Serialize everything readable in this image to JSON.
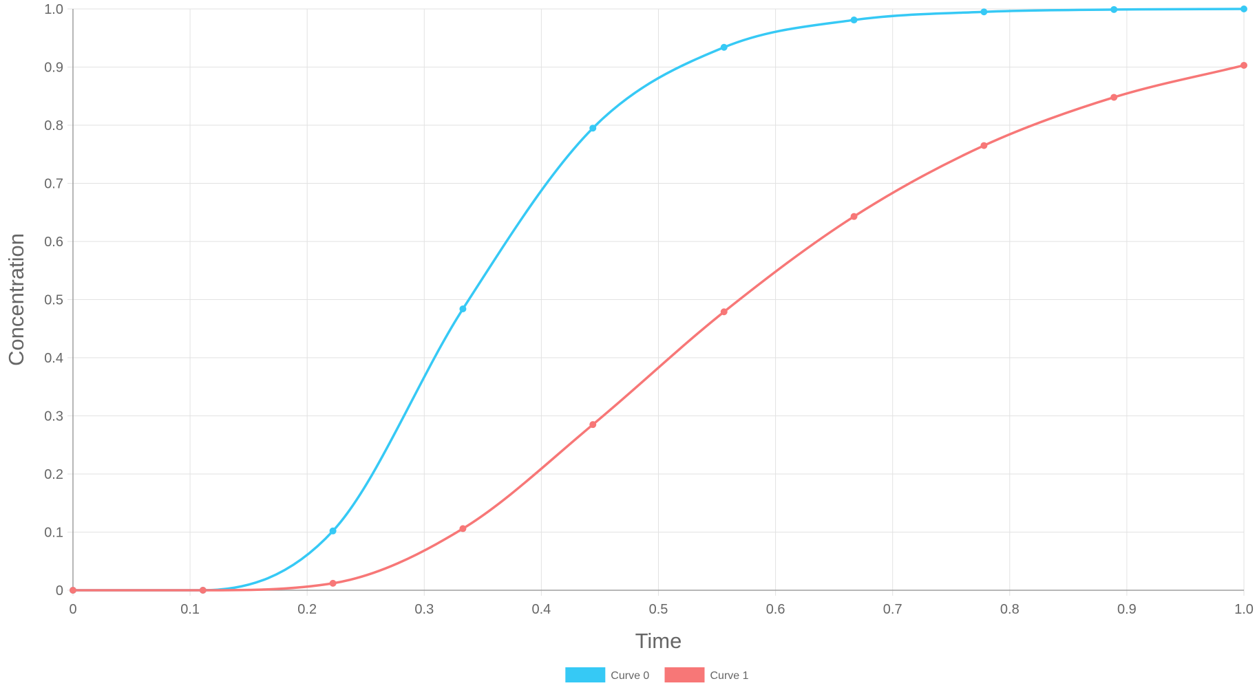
{
  "chart_data": {
    "type": "line",
    "title": "",
    "xlabel": "Time",
    "ylabel": "Concentration",
    "xlim": [
      0,
      1
    ],
    "ylim": [
      0,
      1
    ],
    "x_ticks": [
      "0",
      "0.1",
      "0.2",
      "0.3",
      "0.4",
      "0.5",
      "0.6",
      "0.7",
      "0.8",
      "0.9",
      "1.0"
    ],
    "y_ticks": [
      "0",
      "0.1",
      "0.2",
      "0.3",
      "0.4",
      "0.5",
      "0.6",
      "0.7",
      "0.8",
      "0.9",
      "1.0"
    ],
    "grid": true,
    "legend_position": "bottom",
    "x": [
      0,
      0.111,
      0.222,
      0.333,
      0.444,
      0.556,
      0.667,
      0.778,
      0.889,
      1.0
    ],
    "series": [
      {
        "name": "Curve 0",
        "color": "#36c9f5",
        "values": [
          0,
          0,
          0.102,
          0.484,
          0.795,
          0.934,
          0.981,
          0.995,
          0.999,
          1.0
        ]
      },
      {
        "name": "Curve 1",
        "color": "#f77777",
        "values": [
          0,
          0,
          0.012,
          0.106,
          0.285,
          0.479,
          0.643,
          0.765,
          0.848,
          0.903
        ]
      }
    ]
  }
}
